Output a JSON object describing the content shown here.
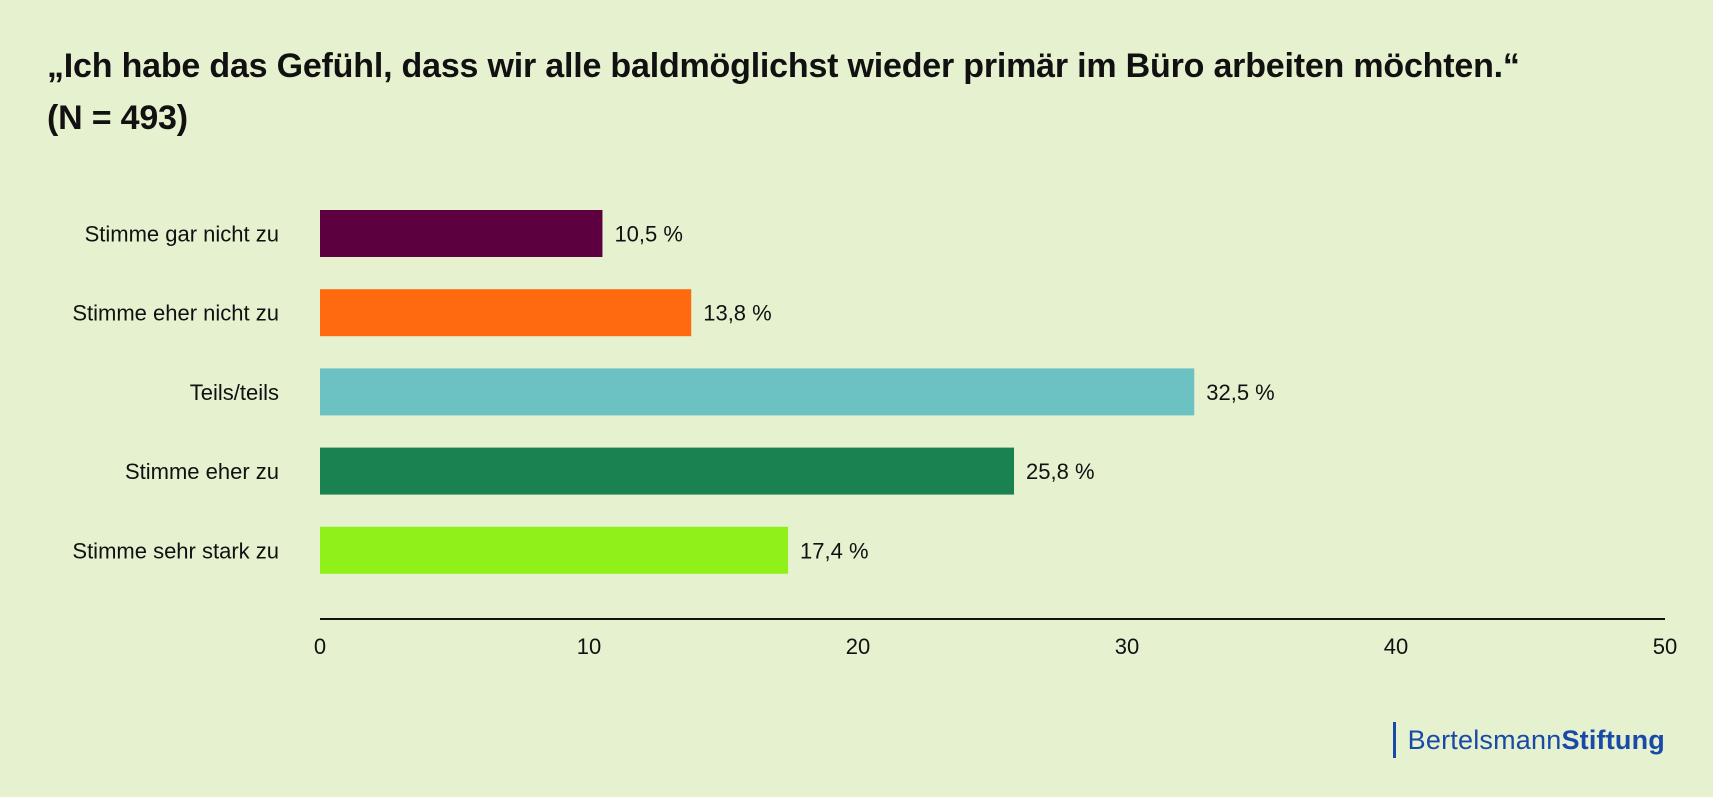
{
  "header": {
    "title_line1": "„Ich habe das Gefühl, dass wir alle baldmöglichst wieder primär im Büro arbeiten möchten.“",
    "title_line2": "(N = 493)"
  },
  "brand": {
    "part1": "Bertelsmann",
    "part2": "Stiftung",
    "color": "#1a4aa8"
  },
  "chart_data": {
    "type": "bar",
    "orientation": "horizontal",
    "title": "„Ich habe das Gefühl, dass wir alle baldmöglichst wieder primär im Büro arbeiten möchten.“ (N = 493)",
    "categories": [
      "Stimme gar nicht zu",
      "Stimme eher nicht zu",
      "Teils/teils",
      "Stimme eher zu",
      "Stimme sehr stark zu"
    ],
    "values": [
      10.5,
      13.8,
      32.5,
      25.8,
      17.4
    ],
    "value_labels": [
      "10,5 %",
      "13,8 %",
      "32,5 %",
      "25,8 %",
      "17,4 %"
    ],
    "colors": [
      "#5c003f",
      "#ff6910",
      "#6cc2c2",
      "#1a8250",
      "#90f01a"
    ],
    "xlim": [
      0,
      50
    ],
    "xticks": [
      0,
      10,
      20,
      30,
      40,
      50
    ],
    "xlabel": "",
    "ylabel": "",
    "grid": false,
    "legend": "none"
  }
}
